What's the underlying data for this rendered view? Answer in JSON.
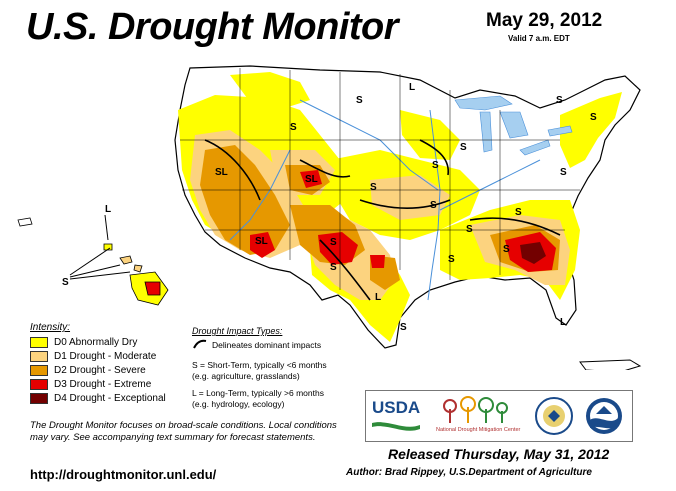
{
  "header": {
    "title": "U.S. Drought Monitor",
    "date": "May 29, 2012",
    "valid": "Valid 7 a.m. EDT"
  },
  "legend": {
    "title": "Intensity:",
    "items": [
      {
        "label": "D0 Abnormally Dry",
        "color": "#ffff00"
      },
      {
        "label": "D1 Drought - Moderate",
        "color": "#fcd37f"
      },
      {
        "label": "D2 Drought - Severe",
        "color": "#e69800"
      },
      {
        "label": "D3 Drought - Extreme",
        "color": "#e60000"
      },
      {
        "label": "D4 Drought - Exceptional",
        "color": "#730000"
      }
    ]
  },
  "impacts": {
    "title": "Drought Impact Types:",
    "line": "Delineates dominant impacts",
    "short_term": "S = Short-Term, typically <6 months",
    "short_term_eg": "(e.g. agriculture, grasslands)",
    "long_term": "L = Long-Term, typically >6 months",
    "long_term_eg": "(e.g. hydrology, ecology)"
  },
  "footnote": "The Drought Monitor focuses on broad-scale conditions. Local conditions may vary. See accompanying text summary for forecast statements.",
  "url": "http://droughtmonitor.unl.edu/",
  "released": "Released Thursday, May 31, 2012",
  "author": "Author: Brad Rippey, U.S.Department of Agriculture",
  "logos": {
    "usda": "USDA",
    "ndmc": "National Drought Mitigation Center"
  },
  "map_labels": [
    "S",
    "S",
    "L",
    "S",
    "S",
    "SL",
    "SL",
    "SL",
    "S",
    "S",
    "S",
    "S",
    "S",
    "S",
    "S",
    "L",
    "S",
    "S",
    "L",
    "S",
    "S",
    "S",
    "L",
    "S"
  ]
}
